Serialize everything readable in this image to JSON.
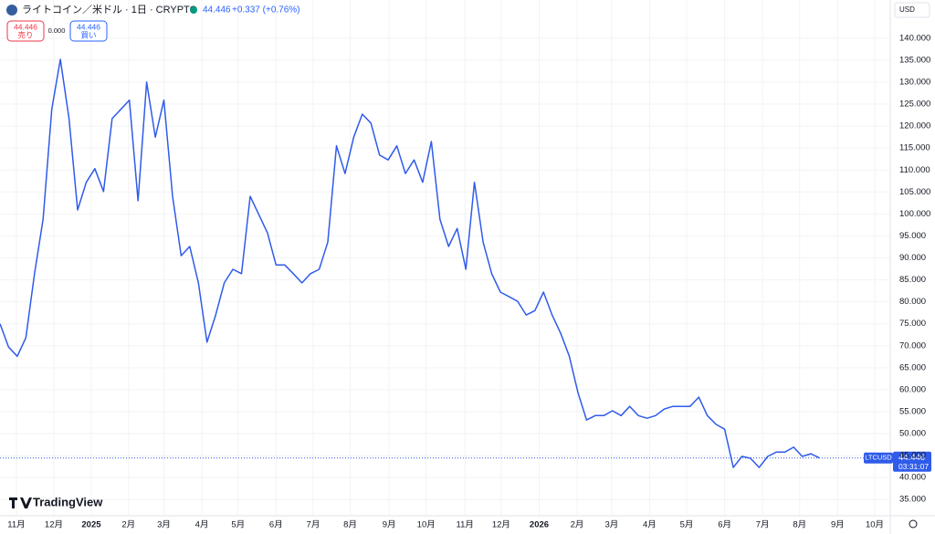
{
  "header": {
    "title": "ライトコイン／米ドル · 1日 · CRYPTO",
    "last": "44.446",
    "change": "+0.337 (+0.76%)"
  },
  "trade": {
    "sell_price": "44.446",
    "sell_label": "売り",
    "spread": "0.000",
    "buy_price": "44.446",
    "buy_label": "買い"
  },
  "currency": "USD",
  "logo": "TradingView",
  "price_tag": {
    "symbol": "LTCUSD",
    "countdown": "03:31:07",
    "label": "44.446"
  },
  "chart_data": {
    "type": "line",
    "series": [
      {
        "name": "LTCUSD",
        "color": "#2f5bea",
        "values": [
          75,
          69.7,
          67.6,
          71.8,
          86.4,
          98.8,
          123.8,
          135.2,
          121.7,
          100.9,
          107.2,
          110.3,
          105.1,
          121.7,
          123.8,
          125.9,
          103,
          130,
          117.5,
          125.9,
          104,
          90.5,
          92.6,
          84.3,
          70.8,
          77,
          84.3,
          87.4,
          86.4,
          104,
          99.9,
          95.7,
          88.4,
          88.4,
          86.4,
          84.3,
          86.4,
          87.4,
          93.6,
          115.5,
          109.2,
          117.5,
          122.7,
          120.7,
          113.4,
          112.3,
          115.5,
          109.2,
          112.3,
          107.2,
          116.5,
          98.8,
          92.6,
          96.7,
          87.4,
          107.2,
          93.6,
          86.4,
          82.2,
          81.2,
          80.1,
          77,
          78,
          82.2,
          77,
          72.8,
          67.6,
          59.3,
          53.1,
          54.1,
          54.1,
          55.2,
          54.1,
          56.2,
          54.1,
          53.5,
          54.1,
          55.6,
          56.2,
          56.2,
          56.2,
          58.3,
          54.1,
          52.1,
          51,
          42.3,
          44.8,
          44.4,
          42.3,
          44.8,
          45.8,
          45.8,
          46.9,
          44.8,
          45.4,
          44.446
        ]
      }
    ],
    "last_price": 44.446,
    "xlim": [
      0,
      103.2
    ],
    "xticks": [
      {
        "value": 1.9,
        "label": "11月"
      },
      {
        "value": 6.24,
        "label": "12月"
      },
      {
        "value": 10.58,
        "label": "2025"
      },
      {
        "value": 14.9,
        "label": "2月"
      },
      {
        "value": 19,
        "label": "3月"
      },
      {
        "value": 23.4,
        "label": "4月"
      },
      {
        "value": 27.6,
        "label": "5月"
      },
      {
        "value": 32,
        "label": "6月"
      },
      {
        "value": 36.3,
        "label": "7月"
      },
      {
        "value": 40.6,
        "label": "8月"
      },
      {
        "value": 45.1,
        "label": "9月"
      },
      {
        "value": 49.4,
        "label": "10月"
      },
      {
        "value": 53.9,
        "label": "11月"
      },
      {
        "value": 58.1,
        "label": "12月"
      },
      {
        "value": 62.5,
        "label": "2026"
      },
      {
        "value": 66.9,
        "label": "2月"
      },
      {
        "value": 70.9,
        "label": "3月"
      },
      {
        "value": 75.3,
        "label": "4月"
      },
      {
        "value": 79.6,
        "label": "5月"
      },
      {
        "value": 84,
        "label": "6月"
      },
      {
        "value": 88.4,
        "label": "7月"
      },
      {
        "value": 92.7,
        "label": "8月"
      },
      {
        "value": 97.1,
        "label": "9月"
      },
      {
        "value": 101.4,
        "label": "10月"
      }
    ],
    "ylim": [
      31.3,
      148.7
    ],
    "yticks": [
      {
        "value": 35,
        "label": "35.000"
      },
      {
        "value": 40,
        "label": "40.000"
      },
      {
        "value": 45,
        "label": "45.000"
      },
      {
        "value": 50,
        "label": "50.000"
      },
      {
        "value": 55,
        "label": "55.000"
      },
      {
        "value": 60,
        "label": "60.000"
      },
      {
        "value": 65,
        "label": "65.000"
      },
      {
        "value": 70,
        "label": "70.000"
      },
      {
        "value": 75,
        "label": "75.000"
      },
      {
        "value": 80,
        "label": "80.000"
      },
      {
        "value": 85,
        "label": "85.000"
      },
      {
        "value": 90,
        "label": "90.000"
      },
      {
        "value": 95,
        "label": "95.000"
      },
      {
        "value": 100,
        "label": "100.000"
      },
      {
        "value": 105,
        "label": "105.000"
      },
      {
        "value": 110,
        "label": "110.000"
      },
      {
        "value": 115,
        "label": "115.000"
      },
      {
        "value": 120,
        "label": "120.000"
      },
      {
        "value": 125,
        "label": "125.000"
      },
      {
        "value": 130,
        "label": "130.000"
      },
      {
        "value": 135,
        "label": "135.000"
      },
      {
        "value": 140,
        "label": "140.000"
      }
    ],
    "grid": true
  }
}
